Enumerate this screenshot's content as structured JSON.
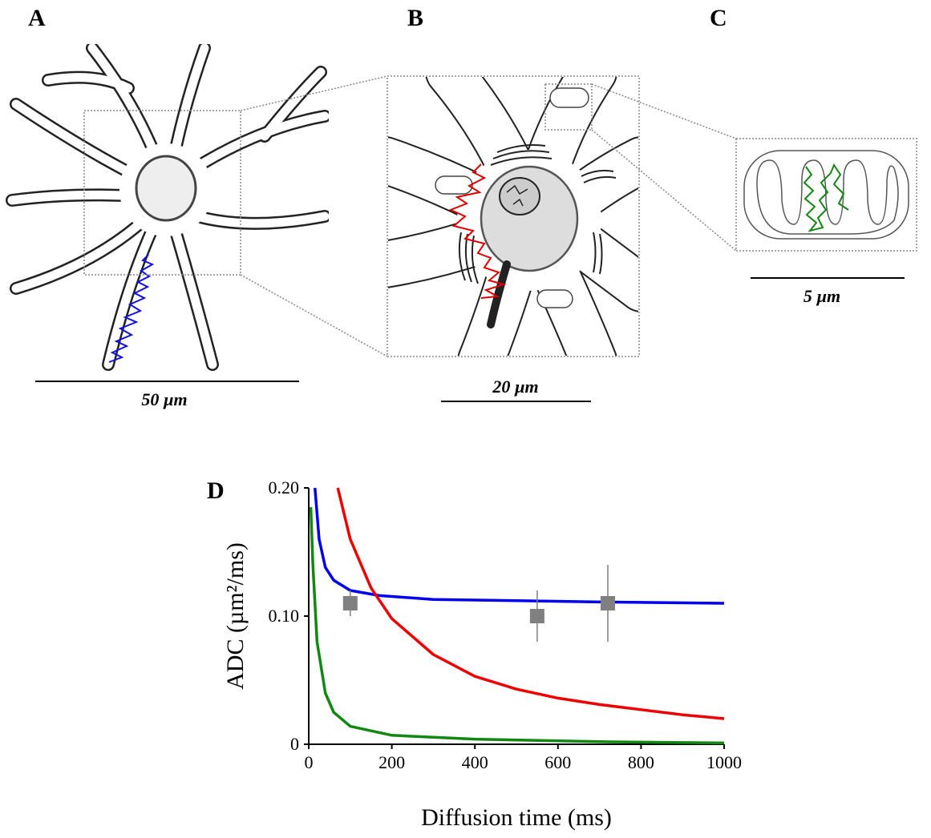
{
  "panels": [
    "A",
    "B",
    "C"
  ],
  "scale_bars": [
    "50 µm",
    "20 µm",
    "5 µm"
  ],
  "chart_data": {
    "type": "line",
    "label": "D",
    "xlabel": "Diffusion time (ms)",
    "ylabel": "ADC (µm²/ms)",
    "xlim": [
      0,
      1000
    ],
    "xticks": [
      0,
      200,
      400,
      600,
      800,
      1000
    ],
    "ylim": [
      0,
      0.2
    ],
    "yticks": [
      0,
      {
        "value": 0.1,
        "label": "0.10"
      },
      {
        "value": 0.2,
        "label": "0.20"
      }
    ],
    "series": [
      {
        "color": "#0000ee",
        "x": [
          15,
          25,
          40,
          60,
          100,
          170,
          300,
          500,
          700,
          1000
        ],
        "values": [
          0.2,
          0.16,
          0.138,
          0.128,
          0.12,
          0.116,
          0.113,
          0.112,
          0.111,
          0.11
        ]
      },
      {
        "color": "#ee0000",
        "x": [
          70,
          100,
          150,
          200,
          300,
          400,
          500,
          600,
          700,
          800,
          900,
          1000
        ],
        "values": [
          0.2,
          0.16,
          0.122,
          0.098,
          0.07,
          0.053,
          0.043,
          0.036,
          0.031,
          0.027,
          0.023,
          0.02
        ]
      },
      {
        "color": "#118811",
        "x": [
          5,
          10,
          20,
          40,
          60,
          100,
          200,
          400,
          700,
          1000
        ],
        "values": [
          0.185,
          0.14,
          0.08,
          0.04,
          0.025,
          0.014,
          0.007,
          0.004,
          0.002,
          0.001
        ]
      }
    ],
    "points": {
      "color": "#808080",
      "x": [
        100,
        550,
        720
      ],
      "values": [
        0.11,
        0.1,
        0.11
      ],
      "errors": [
        0.01,
        0.02,
        0.03
      ]
    }
  }
}
